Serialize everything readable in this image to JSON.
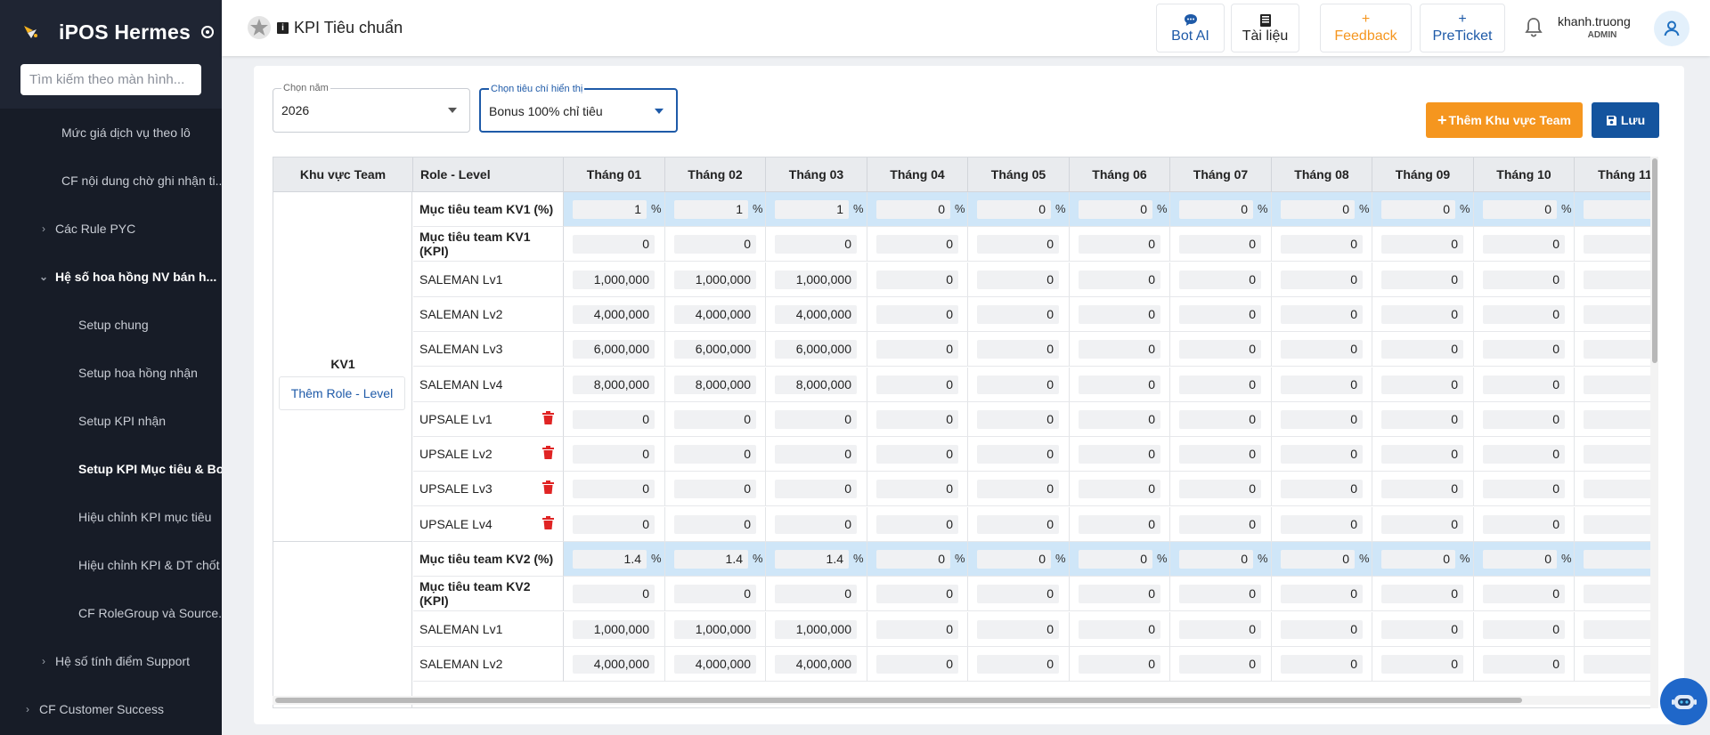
{
  "app": {
    "name": "iPOS Hermes",
    "search_placeholder": "Tìm kiếm theo màn hình..."
  },
  "menu": [
    {
      "label": "Mức giá dịch vụ theo lô",
      "chev": "",
      "style": "l1"
    },
    {
      "label": "CF nội dung chờ ghi nhận ti...",
      "chev": "",
      "style": "l1"
    },
    {
      "label": "Các Rule PYC",
      "chev": "›",
      "style": "l1c"
    },
    {
      "label": "Hệ số hoa hồng NV bán h...",
      "chev": "⌄",
      "style": "l1c bold"
    },
    {
      "label": "Setup chung",
      "chev": "",
      "style": "l2"
    },
    {
      "label": "Setup hoa hồng nhận",
      "chev": "",
      "style": "l2"
    },
    {
      "label": "Setup KPI nhận",
      "chev": "",
      "style": "l2"
    },
    {
      "label": "Setup KPI Mục tiêu & Bo...",
      "chev": "",
      "style": "l2 active"
    },
    {
      "label": "Hiệu chỉnh KPI mục tiêu",
      "chev": "",
      "style": "l2"
    },
    {
      "label": "Hiệu chỉnh KPI & DT chốt",
      "chev": "",
      "style": "l2"
    },
    {
      "label": "CF RoleGroup và Source...",
      "chev": "",
      "style": "l2"
    },
    {
      "label": "Hệ số tính điểm Support",
      "chev": "›",
      "style": "l1c"
    },
    {
      "label": "CF Customer Success",
      "chev": "›",
      "style": "l0c"
    }
  ],
  "header": {
    "page_title": "KPI Tiêu chuẩn",
    "info_icon": "i",
    "buttons": [
      {
        "label": "Bot AI",
        "icon": "chat-icon",
        "color": "#1e5aa8"
      },
      {
        "label": "Tài liệu",
        "icon": "book-icon",
        "color": "#222"
      },
      {
        "label": "Feedback",
        "icon": "+",
        "color": "#f5961f"
      },
      {
        "label": "PreTicket",
        "icon": "+",
        "color": "#1e5aa8"
      }
    ],
    "user_name": "khanh.truong",
    "user_role": "ADMIN"
  },
  "filters": {
    "year_label": "Chọn năm",
    "year_value": "2026",
    "criteria_label": "Chọn tiêu chí hiển thị",
    "criteria_value": "Bonus 100% chỉ tiêu"
  },
  "actions": {
    "add_label": "Thêm Khu vực Team",
    "save_label": "Lưu"
  },
  "table": {
    "col_team": "Khu vực Team",
    "col_role": "Role - Level",
    "months": [
      "Tháng 01",
      "Tháng 02",
      "Tháng 03",
      "Tháng 04",
      "Tháng 05",
      "Tháng 06",
      "Tháng 07",
      "Tháng 08",
      "Tháng 09",
      "Tháng 10",
      "Tháng 11"
    ],
    "add_role_label": "Thêm Role - Level",
    "groups": [
      {
        "name": "KV1",
        "rows": [
          {
            "role": "Mục tiêu team KV1 (%)",
            "bold": true,
            "pct": true,
            "trash": false,
            "values": [
              "1",
              "1",
              "1",
              "0",
              "0",
              "0",
              "0",
              "0",
              "0",
              "0",
              ""
            ]
          },
          {
            "role": "Mục tiêu team KV1 (KPI)",
            "bold": true,
            "pct": false,
            "trash": false,
            "values": [
              "0",
              "0",
              "0",
              "0",
              "0",
              "0",
              "0",
              "0",
              "0",
              "0",
              ""
            ]
          },
          {
            "role": "SALEMAN Lv1",
            "bold": false,
            "pct": false,
            "trash": false,
            "values": [
              "1,000,000",
              "1,000,000",
              "1,000,000",
              "0",
              "0",
              "0",
              "0",
              "0",
              "0",
              "0",
              ""
            ]
          },
          {
            "role": "SALEMAN Lv2",
            "bold": false,
            "pct": false,
            "trash": false,
            "values": [
              "4,000,000",
              "4,000,000",
              "4,000,000",
              "0",
              "0",
              "0",
              "0",
              "0",
              "0",
              "0",
              ""
            ]
          },
          {
            "role": "SALEMAN Lv3",
            "bold": false,
            "pct": false,
            "trash": false,
            "values": [
              "6,000,000",
              "6,000,000",
              "6,000,000",
              "0",
              "0",
              "0",
              "0",
              "0",
              "0",
              "0",
              ""
            ]
          },
          {
            "role": "SALEMAN Lv4",
            "bold": false,
            "pct": false,
            "trash": false,
            "values": [
              "8,000,000",
              "8,000,000",
              "8,000,000",
              "0",
              "0",
              "0",
              "0",
              "0",
              "0",
              "0",
              ""
            ]
          },
          {
            "role": "UPSALE Lv1",
            "bold": false,
            "pct": false,
            "trash": true,
            "values": [
              "0",
              "0",
              "0",
              "0",
              "0",
              "0",
              "0",
              "0",
              "0",
              "0",
              ""
            ]
          },
          {
            "role": "UPSALE Lv2",
            "bold": false,
            "pct": false,
            "trash": true,
            "values": [
              "0",
              "0",
              "0",
              "0",
              "0",
              "0",
              "0",
              "0",
              "0",
              "0",
              ""
            ]
          },
          {
            "role": "UPSALE Lv3",
            "bold": false,
            "pct": false,
            "trash": true,
            "values": [
              "0",
              "0",
              "0",
              "0",
              "0",
              "0",
              "0",
              "0",
              "0",
              "0",
              ""
            ]
          },
          {
            "role": "UPSALE Lv4",
            "bold": false,
            "pct": false,
            "trash": true,
            "values": [
              "0",
              "0",
              "0",
              "0",
              "0",
              "0",
              "0",
              "0",
              "0",
              "0",
              ""
            ]
          }
        ]
      },
      {
        "name": "",
        "rows": [
          {
            "role": "Mục tiêu team KV2 (%)",
            "bold": true,
            "pct": true,
            "trash": false,
            "values": [
              "1.4",
              "1.4",
              "1.4",
              "0",
              "0",
              "0",
              "0",
              "0",
              "0",
              "0",
              ""
            ]
          },
          {
            "role": "Mục tiêu team KV2 (KPI)",
            "bold": true,
            "pct": false,
            "trash": false,
            "values": [
              "0",
              "0",
              "0",
              "0",
              "0",
              "0",
              "0",
              "0",
              "0",
              "0",
              ""
            ]
          },
          {
            "role": "SALEMAN Lv1",
            "bold": false,
            "pct": false,
            "trash": false,
            "values": [
              "1,000,000",
              "1,000,000",
              "1,000,000",
              "0",
              "0",
              "0",
              "0",
              "0",
              "0",
              "0",
              ""
            ]
          },
          {
            "role": "SALEMAN Lv2",
            "bold": false,
            "pct": false,
            "trash": false,
            "values": [
              "4,000,000",
              "4,000,000",
              "4,000,000",
              "0",
              "0",
              "0",
              "0",
              "0",
              "0",
              "0",
              ""
            ]
          }
        ]
      }
    ]
  }
}
